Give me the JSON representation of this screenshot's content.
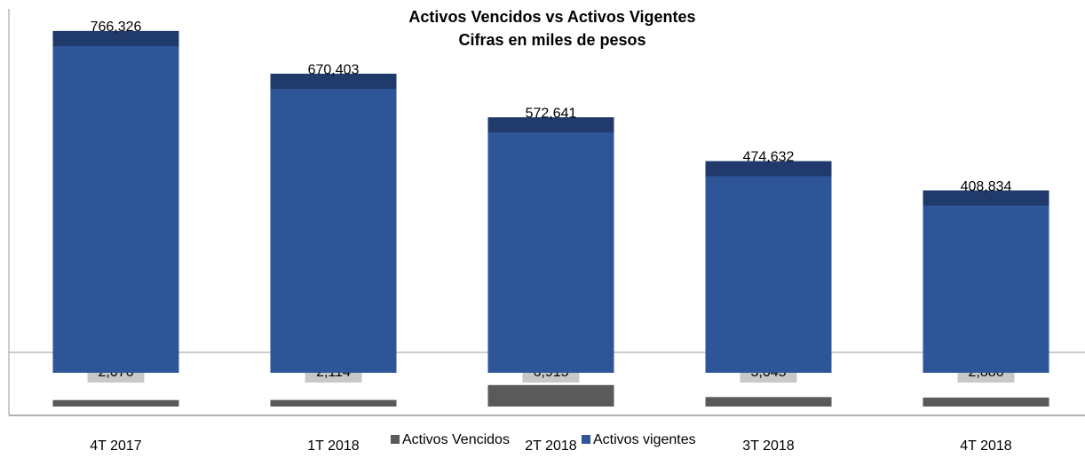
{
  "chart_data": {
    "type": "bar",
    "title": "Activos Vencidos  vs Activos Vigentes",
    "subtitle": "Cifras en miles de pesos",
    "categories": [
      "4T 2017",
      "1T 2018",
      "2T 2018",
      "3T 2018",
      "4T 2018"
    ],
    "series": [
      {
        "name": "Activos Vencidos",
        "color": "#5a5a5a",
        "axis": "y2",
        "values": [
          2076,
          2114,
          6915,
          3045,
          2886
        ],
        "value_labels": [
          "2,076",
          "2,114",
          "6,915",
          "3,045",
          "2,886"
        ]
      },
      {
        "name": "Activos vigentes",
        "color": "#2e5597",
        "values": [
          766326,
          670403,
          572641,
          474632,
          408834
        ],
        "value_labels": [
          "766,326",
          "670,403",
          "572,641",
          "474,632",
          "408,834"
        ]
      }
    ],
    "ylim": [
      0,
      800000
    ],
    "y2lim": [
      0,
      8000
    ],
    "legend": "bottom"
  }
}
